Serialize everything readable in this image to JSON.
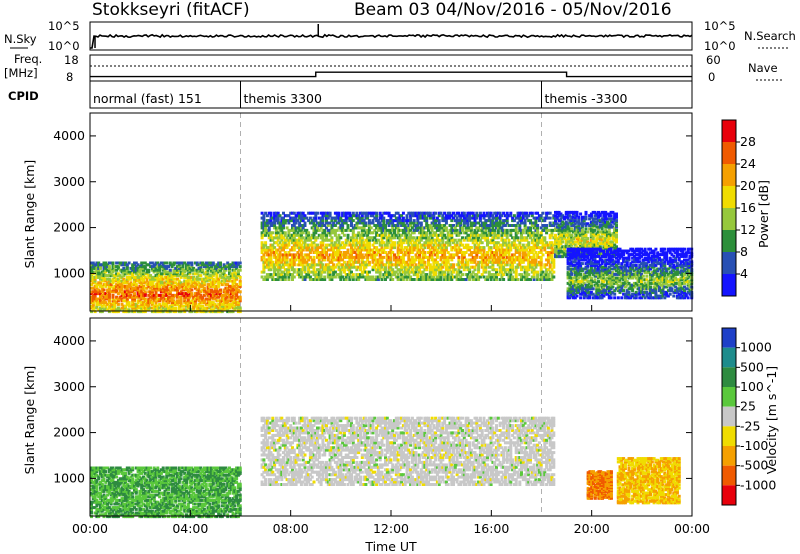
{
  "header": {
    "station": "Stokkseyri (fitACF)",
    "beam_and_dates": "Beam 03  04/Nov/2016 - 05/Nov/2016"
  },
  "noise_panel": {
    "left_label": "N.Sky",
    "right_label": "N.Search",
    "left_ticks": [
      "10^5",
      "10^0"
    ],
    "right_ticks": [
      "10^5",
      "10^0"
    ]
  },
  "freq_panel": {
    "left_label_1": "Freq.",
    "left_label_2": "[MHz]",
    "right_label": "Nave",
    "left_ticks": [
      "18",
      "8"
    ],
    "right_ticks": [
      "60",
      "0"
    ]
  },
  "cpid_panel": {
    "label": "CPID",
    "modes": [
      {
        "name": "normal (fast) 151",
        "start_hour": 0
      },
      {
        "name": "themis 3300",
        "start_hour": 6
      },
      {
        "name": "themis -3300",
        "start_hour": 18
      }
    ]
  },
  "power_panel": {
    "ylabel": "Slant Range [km]",
    "yticks": [
      "4000",
      "3000",
      "2000",
      "1000"
    ],
    "colorbar_title": "Power [dB]",
    "colorbar_labels": [
      "28",
      "24",
      "20",
      "16",
      "12",
      "8",
      "4"
    ],
    "colorbar_colors": [
      "#e8000b",
      "#f05a00",
      "#f5a000",
      "#f0dc00",
      "#96c83c",
      "#2c8f3a",
      "#2850b4",
      "#1414ff"
    ]
  },
  "velocity_panel": {
    "ylabel": "Slant Range [km]",
    "yticks": [
      "4000",
      "3000",
      "2000",
      "1000"
    ],
    "colorbar_title": "Velocity [m s^-1]",
    "colorbar_labels": [
      "1000",
      "500",
      "100",
      "25",
      "-25",
      "-100",
      "-500",
      "-1000"
    ],
    "colorbar_colors": [
      "#1e40c8",
      "#1e8c8c",
      "#2e8b40",
      "#5ac83c",
      "#c8c8c8",
      "#f0dc00",
      "#f5a000",
      "#f05a00",
      "#e8000b"
    ]
  },
  "xaxis": {
    "title": "Time UT",
    "ticks": [
      "00:00",
      "04:00",
      "08:00",
      "12:00",
      "16:00",
      "20:00",
      "00:00"
    ]
  },
  "chart_data": {
    "type": "heatmap",
    "x_range_hours": [
      0,
      24
    ],
    "y_range_km": [
      180,
      4500
    ],
    "mode_change_hours": [
      6,
      18
    ],
    "frequency_step": {
      "low_mhz": 10,
      "high_mhz": 12,
      "high_from_hour": 9,
      "high_to_hour": 19
    },
    "noise_spike_hours": [
      0.2,
      9.1
    ],
    "power_regions": [
      {
        "t0": 0,
        "t1": 6,
        "r0": 200,
        "r1": 1300,
        "peak_db": 28
      },
      {
        "t0": 6.8,
        "t1": 18.5,
        "r0": 900,
        "r1": 2400,
        "peak_db": 24
      },
      {
        "t0": 18.5,
        "t1": 21,
        "r0": 1400,
        "r1": 2400,
        "peak_db": 20
      },
      {
        "t0": 19,
        "t1": 24,
        "r0": 500,
        "r1": 1600,
        "peak_db": 16
      }
    ],
    "velocity_regions": [
      {
        "t0": 0,
        "t1": 6,
        "r0": 200,
        "r1": 1300,
        "velocity": 100
      },
      {
        "t0": 6.8,
        "t1": 18.5,
        "r0": 900,
        "r1": 2400,
        "velocity": 0
      },
      {
        "t0": 19.8,
        "t1": 20.8,
        "r0": 600,
        "r1": 1200,
        "velocity": -500
      },
      {
        "t0": 21,
        "t1": 23.5,
        "r0": 500,
        "r1": 1500,
        "velocity": -100
      }
    ]
  }
}
